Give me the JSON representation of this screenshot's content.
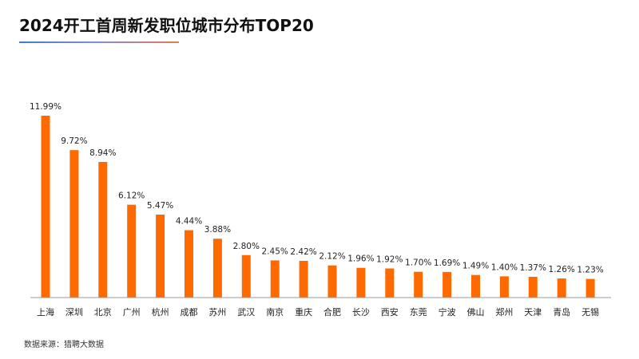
{
  "header": {
    "title": "2024开工首周新发职位城市分布TOP20"
  },
  "source": {
    "text": "数据来源：猎聘大数据"
  },
  "colors": {
    "bar": "#ff6a00",
    "axis": "#999999",
    "label": "#222222"
  },
  "chart_data": {
    "type": "bar",
    "title": "2024开工首周新发职位城市分布TOP20",
    "xlabel": "",
    "ylabel": "",
    "categories": [
      "上海",
      "深圳",
      "北京",
      "广州",
      "杭州",
      "成都",
      "苏州",
      "武汉",
      "南京",
      "重庆",
      "合肥",
      "长沙",
      "西安",
      "东莞",
      "宁波",
      "佛山",
      "郑州",
      "天津",
      "青岛",
      "无锡"
    ],
    "values": [
      11.99,
      9.72,
      8.94,
      6.12,
      5.47,
      4.44,
      3.88,
      2.8,
      2.45,
      2.42,
      2.12,
      1.96,
      1.92,
      1.7,
      1.69,
      1.49,
      1.4,
      1.37,
      1.26,
      1.23
    ],
    "value_labels": [
      "11.99%",
      "9.72%",
      "8.94%",
      "6.12%",
      "5.47%",
      "4.44%",
      "3.88%",
      "2.80%",
      "2.45%",
      "2.42%",
      "2.12%",
      "1.96%",
      "1.92%",
      "1.70%",
      "1.69%",
      "1.49%",
      "1.40%",
      "1.37%",
      "1.26%",
      "1.23%"
    ],
    "unit": "%",
    "ylim": [
      0,
      12
    ],
    "grid": false,
    "legend": "none"
  }
}
